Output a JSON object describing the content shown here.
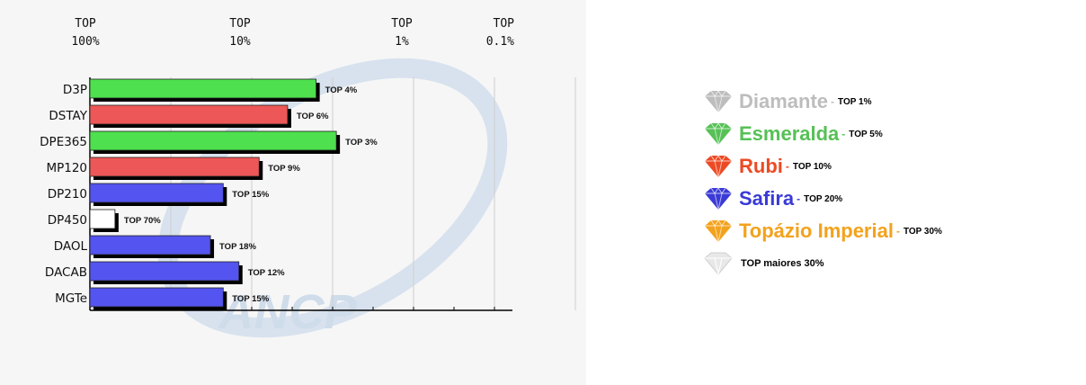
{
  "chart_data": {
    "type": "bar",
    "orientation": "horizontal",
    "top_axis_labels": [
      {
        "line1": "TOP",
        "line2": "100%",
        "value": 100
      },
      {
        "line1": "TOP",
        "line2": "10%",
        "value": 10
      },
      {
        "line1": "TOP",
        "line2": "1%",
        "value": 1
      },
      {
        "line1": "TOP",
        "line2": "0.1%",
        "value": 0.1
      }
    ],
    "scale": "log-reversed",
    "categories": [
      "D3P",
      "DSTAY",
      "DPE365",
      "MP120",
      "DP210",
      "DP450",
      "DAOL",
      "DACAB",
      "MGTe"
    ],
    "values": [
      4,
      6,
      3,
      9,
      15,
      70,
      18,
      12,
      15
    ],
    "data_labels": [
      "TOP 4%",
      "TOP 6%",
      "TOP 3%",
      "TOP 9%",
      "TOP 15%",
      "TOP 70%",
      "TOP 18%",
      "TOP 12%",
      "TOP 15%"
    ],
    "bar_colors": [
      "#4ee04e",
      "#ee5757",
      "#4ee04e",
      "#ee5757",
      "#5454f0",
      "#ffffff",
      "#5454f0",
      "#5454f0",
      "#5454f0"
    ],
    "grid": true,
    "watermark": "ANCP"
  },
  "legend": [
    {
      "name": "Diamante",
      "top": "TOP 1%",
      "color": "#bdbdbd",
      "icon": "diamond-icon",
      "dash": "-"
    },
    {
      "name": "Esmeralda",
      "top": "TOP 5%",
      "color": "#56c156",
      "icon": "emerald-icon",
      "dash": "-"
    },
    {
      "name": "Rubi",
      "top": "TOP 10%",
      "color": "#ec4a24",
      "icon": "ruby-icon",
      "dash": "-"
    },
    {
      "name": "Safira",
      "top": "TOP 20%",
      "color": "#3a3ad6",
      "icon": "sapphire-icon",
      "dash": "-"
    },
    {
      "name": "Topázio Imperial",
      "top": "TOP 30%",
      "color": "#f3a21d",
      "icon": "topaz-icon",
      "dash": "-"
    }
  ],
  "legend_last": {
    "top": "TOP maiores 30%",
    "color": "#e8e8e8",
    "icon": "white-gem-icon"
  }
}
